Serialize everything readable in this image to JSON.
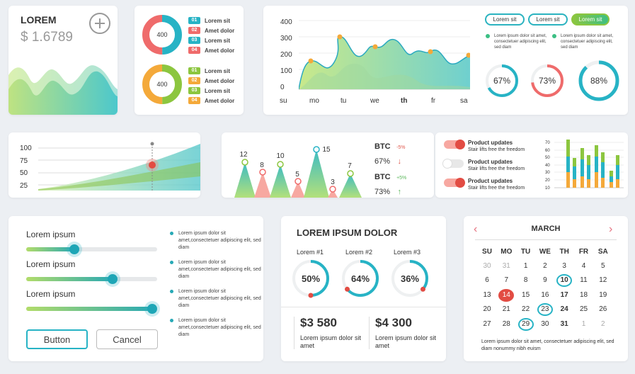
{
  "card_lorem": {
    "title": "LOREM",
    "value": "$ 1.6789"
  },
  "donuts": {
    "top": {
      "center": "400",
      "items": [
        {
          "num": "01",
          "label": "Lorem sit",
          "color": "#27b3c5"
        },
        {
          "num": "02",
          "label": "Amet dolor",
          "color": "#ef6b6b"
        },
        {
          "num": "03",
          "label": "Lorem sit",
          "color": "#27b3c5"
        },
        {
          "num": "04",
          "label": "Amet dolor",
          "color": "#ef6b6b"
        }
      ]
    },
    "bottom": {
      "center": "400",
      "items": [
        {
          "num": "01",
          "label": "Lorem sit",
          "color": "#8cc63f"
        },
        {
          "num": "02",
          "label": "Amet dolor",
          "color": "#f4a93a"
        },
        {
          "num": "03",
          "label": "Lorem sit",
          "color": "#8cc63f"
        },
        {
          "num": "04",
          "label": "Amet dolor",
          "color": "#f4a93a"
        }
      ]
    }
  },
  "area_chart": {
    "y_ticks": [
      "400",
      "300",
      "200",
      "100",
      "0"
    ],
    "x_ticks": [
      "su",
      "mo",
      "tu",
      "we",
      "th",
      "fr",
      "sa"
    ]
  },
  "pills": [
    "Lorem sit",
    "Lorem sit",
    "Lorem sit"
  ],
  "legend_notes": [
    {
      "text": "Lorem ipsum dolor sit amet, consectetuer adipiscing elit, sed diam",
      "color": "#3cbf84"
    },
    {
      "text": "Lorem ipsum dolor sit amet, consectetuer adipiscing elit, sed diam",
      "color": "#3cbf84"
    }
  ],
  "gauges": [
    {
      "label": "67%",
      "value": 0.67,
      "color": "#27b3c5"
    },
    {
      "label": "73%",
      "value": 0.73,
      "color": "#ef6b6b"
    },
    {
      "label": "88%",
      "value": 0.88,
      "color": "#27b3c5"
    }
  ],
  "growth_chart": {
    "y_ticks": [
      "100",
      "75",
      "50",
      "25"
    ]
  },
  "peaks": {
    "values": [
      "12",
      "8",
      "10",
      "5",
      "15",
      "3",
      "7"
    ],
    "btc": [
      {
        "label": "BTC",
        "change": "-5%",
        "pct": "67%",
        "dir": "down",
        "color": "#e05a4e"
      },
      {
        "label": "BTC",
        "change": "+5%",
        "pct": "73%",
        "dir": "up",
        "color": "#5cb85c"
      }
    ]
  },
  "updates": {
    "items": [
      {
        "title": "Product updates",
        "sub": "Stair lifts free the freedom",
        "on": true
      },
      {
        "title": "Product updates",
        "sub": "Stair lifts free the freedom",
        "on": false
      },
      {
        "title": "Product updates",
        "sub": "Stair lifts free the freedom",
        "on": true
      }
    ],
    "y_ticks": [
      "70",
      "60",
      "50",
      "40",
      "30",
      "20",
      "10"
    ]
  },
  "sliders": {
    "items": [
      {
        "label": "Lorem ipsum",
        "value": 0.37
      },
      {
        "label": "Lorem ipsum",
        "value": 0.66
      },
      {
        "label": "Lorem ipsum",
        "value": 0.96
      }
    ],
    "notes": [
      "Lorem ipsum dolor sit amet,consectetuer adipiscing elit, sed diam",
      "Lorem ipsum dolor sit amet,consectetuer adipiscing elit, sed diam",
      "Lorem ipsum dolor sit amet,consectetuer adipiscing elit, sed diam",
      "Lorem ipsum dolor sit amet,consectetuer adipiscing elit, sed diam"
    ],
    "button_label": "Button",
    "cancel_label": "Cancel"
  },
  "stats": {
    "title": "LOREM IPSUM DOLOR",
    "gauges": [
      {
        "label": "Lorem #1",
        "pct": "50%",
        "value": 0.5
      },
      {
        "label": "Lorem #2",
        "pct": "64%",
        "value": 0.64
      },
      {
        "label": "Lorem #3",
        "pct": "36%",
        "value": 0.36
      }
    ],
    "totals": [
      {
        "amount": "$3 580",
        "desc": "Lorem ipsum dolor sit amet"
      },
      {
        "amount": "$4 300",
        "desc": "Lorem ipsum dolor sit amet"
      }
    ]
  },
  "calendar": {
    "month": "MARCH",
    "weekdays": [
      "SU",
      "MO",
      "TU",
      "WE",
      "TH",
      "FR",
      "SA"
    ],
    "rows": [
      [
        "30",
        "31",
        "1",
        "2",
        "3",
        "4",
        "5"
      ],
      [
        "6",
        "7",
        "8",
        "9",
        "10",
        "11",
        "12"
      ],
      [
        "13",
        "14",
        "15",
        "16",
        "17",
        "18",
        "19"
      ],
      [
        "20",
        "21",
        "22",
        "23",
        "24",
        "25",
        "26"
      ],
      [
        "27",
        "28",
        "29",
        "30",
        "31",
        "1",
        "2"
      ]
    ],
    "footer": "Lorem ipsum dolor sit amet, consectetuer adipiscing elit, sed diam nonummy nibh euism"
  }
}
